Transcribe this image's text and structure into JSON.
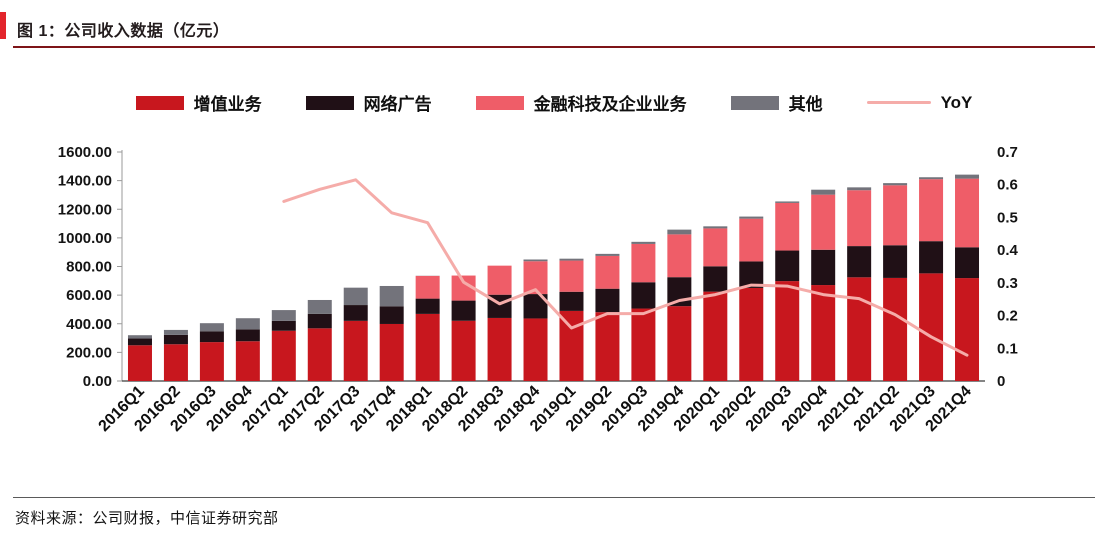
{
  "header": {
    "title": "图 1：公司收入数据（亿元）"
  },
  "footer": {
    "source": "资料来源：公司财报，中信证券研究部"
  },
  "style": {
    "accent_red": "#e3252c",
    "title_rule_maroon": "#7e1418",
    "footer_rule_gray": "#5a5a5a"
  },
  "chart_data": {
    "type": "bar",
    "stacked": true,
    "title": "图 1：公司收入数据（亿元）",
    "xlabel": "",
    "ylabel_left": "亿元",
    "ylabel_right": "YoY",
    "grid": false,
    "legend_position": "top",
    "categories": [
      "2016Q1",
      "2016Q2",
      "2016Q3",
      "2016Q4",
      "2017Q1",
      "2017Q2",
      "2017Q3",
      "2017Q4",
      "2018Q1",
      "2018Q2",
      "2018Q3",
      "2018Q4",
      "2019Q1",
      "2019Q2",
      "2019Q3",
      "2019Q4",
      "2020Q1",
      "2020Q2",
      "2020Q3",
      "2020Q4",
      "2021Q1",
      "2021Q2",
      "2021Q3",
      "2021Q4"
    ],
    "series": [
      {
        "name": "增值业务",
        "color": "#c8171e",
        "values": [
          249.64,
          256.86,
          271.75,
          277.69,
          351.08,
          368.04,
          420.24,
          398.47,
          468.77,
          420.69,
          440.49,
          437.04,
          489.74,
          480.8,
          506.29,
          523.08,
          624.29,
          650.02,
          698.02,
          670.42,
          724.43,
          720.13,
          752.03,
          719.13
        ]
      },
      {
        "name": "网络广告",
        "color": "#201016",
        "values": [
          47.01,
          65.32,
          74.49,
          82.88,
          68.88,
          101.48,
          110.42,
          123.61,
          106.89,
          141.1,
          162.47,
          170.33,
          133.77,
          164.09,
          183.66,
          202.25,
          177.13,
          185.52,
          213.51,
          246.55,
          218.2,
          228.33,
          224.95,
          215.18
        ]
      },
      {
        "name": "金融科技及企业业务",
        "color": "#ef5d68",
        "values": [
          0,
          0,
          0,
          0,
          0,
          0,
          0,
          0,
          158.4,
          174.96,
          202.99,
          229.37,
          217.89,
          228.88,
          267.58,
          299.2,
          264.75,
          298.62,
          332.55,
          385.04,
          390.28,
          418.92,
          433.17,
          479.58
        ]
      },
      {
        "name": "其他",
        "color": "#73737b",
        "values": [
          23.3,
          34.73,
          57.64,
          78.07,
          75.56,
          96.54,
          121.44,
          141.84,
          1.22,
          0,
          0,
          12.22,
          13.25,
          14.44,
          14.83,
          33.14,
          14.48,
          14.67,
          10.39,
          34.68,
          20.12,
          15.21,
          13.53,
          27.99
        ]
      }
    ],
    "line_series": {
      "name": "YoY",
      "color": "#f5aca9",
      "axis": "right",
      "values": [
        null,
        null,
        null,
        null,
        0.549,
        0.586,
        0.615,
        0.514,
        0.484,
        0.302,
        0.236,
        0.279,
        0.162,
        0.206,
        0.206,
        0.246,
        0.264,
        0.293,
        0.29,
        0.264,
        0.252,
        0.203,
        0.135,
        0.079
      ]
    },
    "left_axis": {
      "min": 0,
      "max": 1600,
      "ticks": [
        "1600.00",
        "1400.00",
        "1200.00",
        "1000.00",
        "800.00",
        "600.00",
        "400.00",
        "200.00",
        "0.00"
      ]
    },
    "right_axis": {
      "min": 0,
      "max": 0.7,
      "ticks": [
        "0.7",
        "0.6",
        "0.5",
        "0.4",
        "0.3",
        "0.2",
        "0.1",
        "0"
      ]
    }
  }
}
